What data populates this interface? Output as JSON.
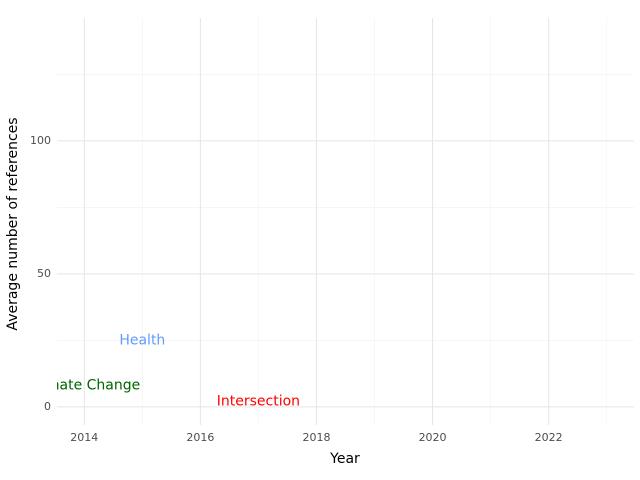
{
  "chart_data": {
    "type": "line",
    "xlabel": "Year",
    "ylabel": "Average number of references",
    "xlim": [
      2013.53,
      2023.47
    ],
    "ylim": [
      -6.8,
      146.2
    ],
    "xticks": [
      2014,
      2016,
      2018,
      2020,
      2022
    ],
    "yticks": [
      0,
      50,
      100
    ],
    "grid": true,
    "annotations": [
      {
        "text": "Health",
        "x": 2015,
        "y": 25,
        "color": "#619cff"
      },
      {
        "text": "Climate Change",
        "x": 2014,
        "y": 8,
        "color": "#006400"
      },
      {
        "text": "Intersection",
        "x": 2017,
        "y": 2,
        "color": "#ff0000"
      }
    ]
  }
}
